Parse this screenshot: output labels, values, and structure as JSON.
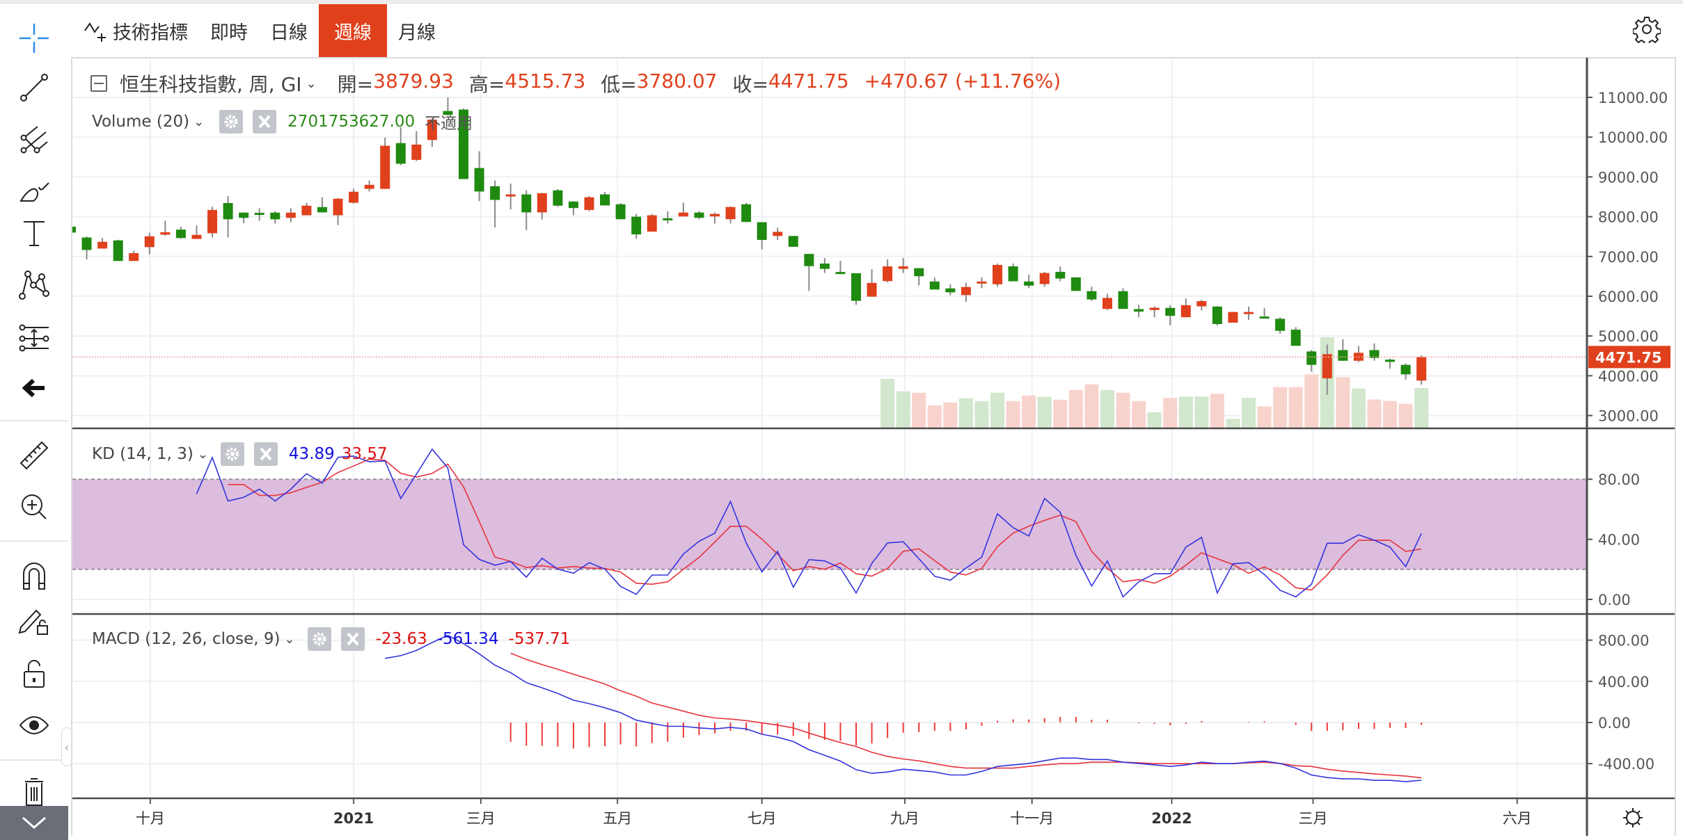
{
  "topbar": {
    "tabs": [
      {
        "label": "技術指標",
        "icon": "indicator-icon"
      },
      {
        "label": "即時"
      },
      {
        "label": "日線"
      },
      {
        "label": "週線",
        "active": true
      },
      {
        "label": "月線"
      }
    ],
    "settings_icon": "gear-icon"
  },
  "toolbar": {
    "tools": [
      "crosshair-icon",
      "trend-line-icon",
      "pitchfork-icon",
      "brush-icon",
      "text-icon",
      "pattern-icon",
      "fib-levels-icon",
      "back-arrow-icon",
      "ruler-icon",
      "zoom-in-icon",
      "magnet-icon",
      "lock-drawing-icon",
      "unlock-icon",
      "eye-icon",
      "trash-icon",
      "chevron-down-icon"
    ],
    "collapse_glyph": "‹"
  },
  "legend": {
    "symbol": "恒生科技指數, 周, GI",
    "open_label": "開=",
    "open": "3879.93",
    "high_label": "高=",
    "high": "4515.73",
    "low_label": "低=",
    "low": "3780.07",
    "close_label": "收=",
    "close": "4471.75",
    "change": "+470.67 (+11.76%)"
  },
  "volume_legend": {
    "title": "Volume (20)",
    "value": "2701753627.00",
    "extra": "不適用"
  },
  "kd_legend": {
    "title": "KD (14, 1, 3)",
    "k": "43.89",
    "d": "33.57"
  },
  "macd_legend": {
    "title": "MACD (12, 26, close, 9)",
    "hist": "-23.63",
    "dif": "-561.34",
    "dea": "-537.71"
  },
  "colors": {
    "up": "#e0401c",
    "down": "#1f8a10",
    "vol_up": "#f8d3cc",
    "vol_down": "#d2e7cd",
    "k": "#3333dd",
    "d": "#e8323c",
    "band": "#dcbddd"
  },
  "chart_data": {
    "type": "candlestick",
    "title": "恒生科技指數 週線",
    "price_axis": {
      "ylim": [
        2800,
        11200
      ],
      "ticks": [
        "11000.00",
        "10000.00",
        "9000.00",
        "8000.00",
        "7000.00",
        "6000.00",
        "5000.00",
        "4000.00",
        "3000.00"
      ],
      "tick_values": [
        11000,
        10000,
        9000,
        8000,
        7000,
        6000,
        5000,
        4000,
        3000
      ],
      "last_price": 4471.75,
      "last_label": "4471.75"
    },
    "time_axis": {
      "labels": [
        "十月",
        "2021",
        "三月",
        "五月",
        "七月",
        "九月",
        "十一月",
        "2022",
        "三月",
        "六月"
      ],
      "bold": [
        false,
        true,
        false,
        false,
        false,
        false,
        false,
        true,
        false,
        false
      ],
      "week_index": [
        5.05,
        18.0,
        26.1,
        34.8,
        44.0,
        53.1,
        61.2,
        70.1,
        79.1,
        92.1
      ]
    },
    "candles_ohlc": [
      [
        7750,
        7800,
        7550,
        7600
      ],
      [
        7476,
        7500,
        6922,
        7163
      ],
      [
        7199,
        7464,
        7199,
        7368
      ],
      [
        7404,
        7420,
        6886,
        6886
      ],
      [
        6886,
        7145,
        6886,
        7084
      ],
      [
        7235,
        7596,
        7054,
        7506
      ],
      [
        7548,
        7898,
        7524,
        7608
      ],
      [
        7675,
        7747,
        7440,
        7464
      ],
      [
        7440,
        7777,
        7440,
        7542
      ],
      [
        7584,
        8247,
        7476,
        8169
      ],
      [
        8343,
        8518,
        7476,
        7934
      ],
      [
        8102,
        8110,
        7837,
        7970
      ],
      [
        8096,
        8211,
        7898,
        8090
      ],
      [
        8102,
        8140,
        7825,
        7934
      ],
      [
        7970,
        8211,
        7862,
        8102
      ],
      [
        8036,
        8350,
        8036,
        8277
      ],
      [
        8241,
        8488,
        8108,
        8108
      ],
      [
        8036,
        8470,
        7789,
        8452
      ],
      [
        8350,
        8700,
        8330,
        8627
      ],
      [
        8699,
        8910,
        8633,
        8801
      ],
      [
        8699,
        9988,
        8699,
        9783
      ],
      [
        9850,
        10247,
        9295,
        9331
      ],
      [
        9428,
        10150,
        9400,
        9813
      ],
      [
        9928,
        10440,
        9753,
        10440
      ],
      [
        10657,
        11000,
        10540,
        10560
      ],
      [
        10693,
        10720,
        8946,
        8946
      ],
      [
        9223,
        9645,
        8392,
        8633
      ],
      [
        8765,
        8910,
        7729,
        8422
      ],
      [
        8530,
        8831,
        8181,
        8560
      ],
      [
        8560,
        8663,
        7657,
        8108
      ],
      [
        8108,
        8600,
        7928,
        8590
      ],
      [
        8663,
        8693,
        8247,
        8277
      ],
      [
        8380,
        8390,
        8036,
        8217
      ],
      [
        8169,
        8518,
        8139,
        8488
      ],
      [
        8560,
        8620,
        8283,
        8283
      ],
      [
        8312,
        8341,
        7936,
        7936
      ],
      [
        8000,
        8069,
        7445,
        7555
      ],
      [
        7624,
        8069,
        7624,
        8035
      ],
      [
        7960,
        8139,
        7827,
        7953
      ],
      [
        8006,
        8353,
        8006,
        8104
      ],
      [
        8104,
        8139,
        7936,
        7971
      ],
      [
        8006,
        8104,
        7826,
        8069
      ],
      [
        7936,
        8260,
        7832,
        8243
      ],
      [
        8312,
        8347,
        7867,
        7867
      ],
      [
        7861,
        7861,
        7174,
        7416
      ],
      [
        7515,
        7723,
        7416,
        7619
      ],
      [
        7515,
        7515,
        7243,
        7243
      ],
      [
        7064,
        7064,
        6133,
        6757
      ],
      [
        6821,
        6960,
        6584,
        6688
      ],
      [
        6610,
        6890,
        6550,
        6600
      ],
      [
        6578,
        6578,
        5786,
        5885
      ],
      [
        5989,
        6682,
        5989,
        6335
      ],
      [
        6381,
        6925,
        6346,
        6751
      ],
      [
        6688,
        6960,
        6584,
        6751
      ],
      [
        6705,
        6705,
        6272,
        6503
      ],
      [
        6370,
        6468,
        6168,
        6168
      ],
      [
        6197,
        6301,
        6029,
        6098
      ],
      [
        6029,
        6335,
        5861,
        6232
      ],
      [
        6335,
        6474,
        6203,
        6370
      ],
      [
        6301,
        6821,
        6237,
        6786
      ],
      [
        6751,
        6821,
        6376,
        6376
      ],
      [
        6370,
        6543,
        6203,
        6266
      ],
      [
        6306,
        6613,
        6237,
        6584
      ],
      [
        6613,
        6751,
        6376,
        6445
      ],
      [
        6474,
        6474,
        6133,
        6133
      ],
      [
        6127,
        6237,
        5884,
        5919
      ],
      [
        5681,
        6064,
        5652,
        5958
      ],
      [
        6127,
        6197,
        5682,
        5682
      ],
      [
        5676,
        5780,
        5474,
        5613
      ],
      [
        5653,
        5745,
        5474,
        5711
      ],
      [
        5706,
        5775,
        5267,
        5507
      ],
      [
        5472,
        5946,
        5472,
        5775
      ],
      [
        5746,
        5911,
        5643,
        5877
      ],
      [
        5740,
        5750,
        5267,
        5301
      ],
      [
        5336,
        5604,
        5336,
        5604
      ],
      [
        5575,
        5740,
        5404,
        5604
      ],
      [
        5490,
        5706,
        5472,
        5472
      ],
      [
        5433,
        5467,
        5062,
        5130
      ],
      [
        5159,
        5222,
        4754,
        4754
      ],
      [
        4612,
        4646,
        4104,
        4275
      ],
      [
        3935,
        4788,
        3523,
        4543
      ],
      [
        4646,
        4920,
        4378,
        4378
      ],
      [
        4378,
        4749,
        4344,
        4578
      ],
      [
        4646,
        4817,
        4378,
        4446
      ],
      [
        4406,
        4430,
        4179,
        4350
      ],
      [
        4275,
        4310,
        3905,
        4036
      ],
      [
        3879.93,
        4515.73,
        3780.07,
        4471.75
      ]
    ],
    "volume": {
      "start_index": 52,
      "values_billions": [
        3.32,
        2.48,
        2.38,
        1.52,
        1.72,
        2.0,
        1.81,
        2.38,
        1.81,
        2.19,
        2.1,
        1.9,
        2.57,
        2.95,
        2.57,
        2.38,
        1.81,
        1.05,
        2.03,
        2.12,
        2.12,
        2.31,
        0.6,
        2.03,
        1.45,
        2.77,
        2.77,
        3.63,
        6.16,
        3.44,
        2.67,
        1.92,
        1.82,
        1.63,
        2.7
      ],
      "is_up": [
        0,
        0,
        1,
        1,
        1,
        0,
        0,
        0,
        1,
        1,
        0,
        1,
        1,
        1,
        0,
        1,
        1,
        0,
        1,
        0,
        0,
        1,
        0,
        0,
        1,
        1,
        1,
        1,
        0,
        1,
        0,
        1,
        1,
        1,
        0
      ]
    },
    "kd": {
      "ylim": [
        0,
        100
      ],
      "ticks": [
        "80.00",
        "40.00",
        "0.00"
      ],
      "tick_values": [
        80,
        40,
        0
      ],
      "band": [
        20,
        80
      ],
      "k_start": 8,
      "k": [
        70.3,
        94.5,
        65.5,
        68,
        73.4,
        65.5,
        73.4,
        83.7,
        77.5,
        94.6,
        95.4,
        91.6,
        92.2,
        67.2,
        83.4,
        100,
        87.5,
        36.4,
        26.6,
        22.8,
        25.3,
        14.8,
        27.4,
        20.2,
        17.4,
        24.5,
        20.2,
        8.6,
        3.4,
        16.2,
        16.2,
        30.2,
        38.7,
        44.1,
        65.2,
        37.6,
        18.3,
        32,
        8.1,
        26.5,
        25.6,
        20.9,
        4.3,
        24,
        37.6,
        38.4,
        27.1,
        15.4,
        12.8,
        20.9,
        28.2,
        57,
        47.8,
        42.2,
        67.2,
        58,
        29.4,
        8.9,
        25.6,
        1.7,
        11.7,
        17.1,
        17.1,
        34.8,
        41.3,
        4.3,
        23.7,
        24.5,
        16.6,
        6.1,
        1.7,
        10.1,
        37.4,
        37.4,
        43,
        39.4,
        34.8,
        21.9,
        43.89
      ],
      "d_start": 10,
      "d": [
        76.5,
        76.5,
        69.2,
        69.2,
        71,
        74.6,
        78,
        84.5,
        88.8,
        93.4,
        92.6,
        83.9,
        81.4,
        83.9,
        90,
        74.9,
        51.8,
        28.2,
        25.3,
        21.2,
        22.5,
        20.9,
        21.9,
        20.9,
        20.6,
        18.2,
        10.8,
        10.1,
        11.7,
        20,
        27.9,
        38.2,
        48.7,
        48.7,
        40.2,
        30.2,
        19.1,
        21.9,
        20,
        24.3,
        17.1,
        15.5,
        20.6,
        32,
        33.7,
        25.9,
        18.2,
        16.3,
        20.6,
        35.1,
        44.1,
        48.7,
        52.6,
        56.1,
        51.8,
        32,
        20.9,
        11.7,
        13.2,
        10.8,
        15.5,
        22.8,
        31,
        27.1,
        23.3,
        17.4,
        21.6,
        16.3,
        7.8,
        6.3,
        16.3,
        29.4,
        39.4,
        39.4,
        39.4,
        32,
        33.57
      ]
    },
    "macd": {
      "ticks": [
        "800.00",
        "400.00",
        "0.00",
        "-400.00"
      ],
      "tick_values": [
        800,
        400,
        0,
        -400
      ],
      "dif_start": 20,
      "dif": [
        623,
        649,
        700,
        777,
        847,
        766,
        667,
        557,
        484,
        387,
        337,
        282,
        216,
        183,
        143,
        95,
        22,
        -9,
        -37,
        -37,
        -53,
        -62,
        -48,
        -62,
        -114,
        -143,
        -185,
        -264,
        -319,
        -375,
        -458,
        -494,
        -481,
        -454,
        -467,
        -481,
        -510,
        -510,
        -476,
        -427,
        -413,
        -398,
        -371,
        -346,
        -346,
        -360,
        -360,
        -386,
        -398,
        -413,
        -427,
        -413,
        -386,
        -400,
        -400,
        -386,
        -375,
        -398,
        -443,
        -510,
        -535,
        -548,
        -548,
        -562,
        -562,
        -575,
        -561.34
      ],
      "dea_start": 28,
      "dea": [
        673,
        612,
        563,
        517,
        469,
        422,
        374,
        308,
        255,
        189,
        150,
        110,
        70,
        44,
        33,
        18,
        -4,
        -26,
        -53,
        -103,
        -150,
        -195,
        -234,
        -290,
        -330,
        -355,
        -373,
        -400,
        -427,
        -443,
        -443,
        -443,
        -443,
        -427,
        -413,
        -400,
        -400,
        -386,
        -386,
        -386,
        -391,
        -400,
        -400,
        -400,
        -400,
        -400,
        -400,
        -391,
        -386,
        -398,
        -420,
        -427,
        -454,
        -472,
        -485,
        -499,
        -510,
        -521,
        -537.71
      ]
    }
  }
}
